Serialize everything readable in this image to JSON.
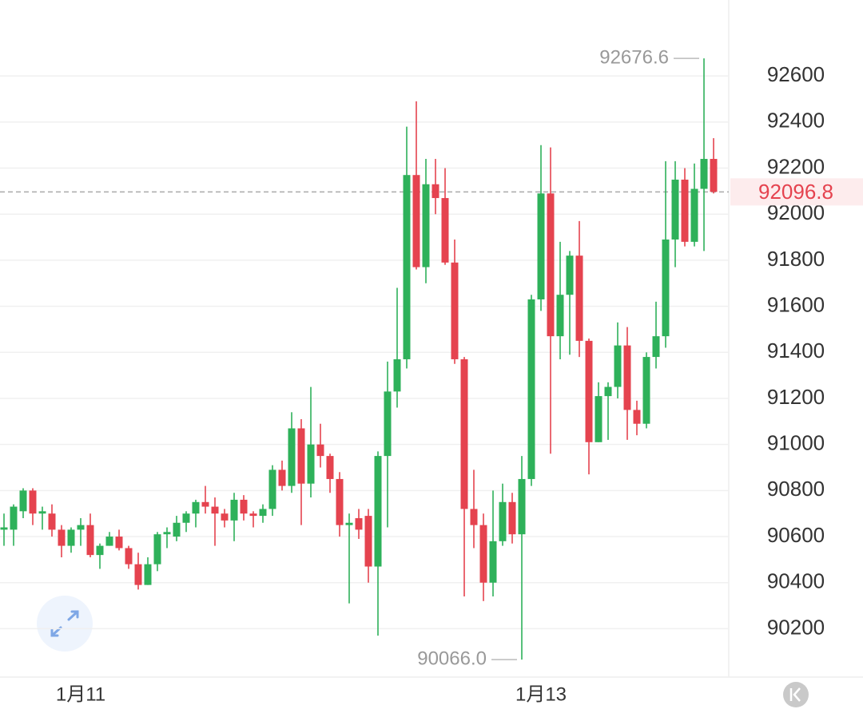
{
  "chart_data": {
    "type": "candlestick",
    "categories": [
      null,
      null,
      null,
      null,
      null,
      null,
      null,
      null,
      "1月11",
      null,
      null,
      null,
      null,
      null,
      null,
      null,
      null,
      null,
      null,
      null,
      null,
      null,
      null,
      null,
      null,
      null,
      null,
      null,
      null,
      null,
      null,
      null,
      null,
      null,
      null,
      null,
      null,
      null,
      null,
      null,
      null,
      null,
      null,
      null,
      null,
      null,
      null,
      null,
      null,
      null,
      null,
      null,
      null,
      null,
      null,
      null,
      "1月13",
      null,
      null,
      null,
      null,
      null,
      null,
      null,
      null,
      null,
      null,
      null,
      null,
      null,
      null,
      null,
      null,
      null,
      null
    ],
    "open": [
      90630,
      90630,
      90710,
      90800,
      90700,
      90700,
      90630,
      90560,
      90630,
      90650,
      90520,
      90560,
      90600,
      90550,
      90480,
      90390,
      90480,
      90610,
      90600,
      90660,
      90700,
      90750,
      90730,
      90700,
      90670,
      90760,
      90700,
      90690,
      90720,
      90890,
      90820,
      91070,
      90830,
      91000,
      90950,
      90850,
      90650,
      90680,
      90690,
      90470,
      90950,
      91230,
      91370,
      92170,
      91770,
      92130,
      92070,
      91790,
      91370,
      90720,
      90650,
      90400,
      90580,
      90750,
      90610,
      90850,
      91630,
      92090,
      91470,
      91650,
      91820,
      91450,
      91010,
      91210,
      91250,
      91430,
      91150,
      91090,
      91380,
      91470,
      91890,
      92150,
      91880,
      92110,
      92240
    ],
    "high": [
      90700,
      90740,
      90810,
      90810,
      90730,
      90740,
      90650,
      90640,
      90680,
      90700,
      90570,
      90620,
      90630,
      90560,
      90530,
      90510,
      90620,
      90640,
      90690,
      90710,
      90760,
      90820,
      90770,
      90720,
      90790,
      90780,
      90710,
      90740,
      90910,
      90930,
      91140,
      91110,
      91250,
      91090,
      90960,
      90880,
      90700,
      90720,
      90720,
      90970,
      91360,
      91680,
      92380,
      92490,
      92240,
      92240,
      92200,
      91890,
      91380,
      90890,
      90700,
      90800,
      90830,
      90790,
      90950,
      91650,
      92300,
      92290,
      91880,
      91840,
      91970,
      91460,
      91270,
      91270,
      91530,
      91510,
      91190,
      91400,
      91620,
      92230,
      92230,
      92200,
      92220,
      92676.6,
      92330
    ],
    "low": [
      90560,
      90560,
      90680,
      90650,
      90630,
      90600,
      90510,
      90530,
      90560,
      90510,
      90460,
      90560,
      90540,
      90460,
      90370,
      90390,
      90450,
      90550,
      90580,
      90620,
      90640,
      90700,
      90560,
      90640,
      90580,
      90670,
      90640,
      90660,
      90690,
      90800,
      90790,
      90650,
      90770,
      90900,
      90790,
      90600,
      90310,
      90590,
      90400,
      90170,
      90640,
      91160,
      91330,
      91760,
      91700,
      92000,
      91780,
      91350,
      90340,
      90550,
      90320,
      90340,
      90560,
      90570,
      90066.0,
      90820,
      91580,
      90960,
      91370,
      91390,
      91380,
      90870,
      91010,
      91020,
      91200,
      91020,
      91040,
      91070,
      91330,
      91420,
      91770,
      91860,
      91860,
      91840,
      92090
    ],
    "close": [
      90640,
      90730,
      90800,
      90700,
      90710,
      90630,
      90560,
      90630,
      90650,
      90520,
      90560,
      90600,
      90550,
      90480,
      90390,
      90480,
      90610,
      90620,
      90660,
      90700,
      90750,
      90730,
      90700,
      90670,
      90760,
      90700,
      90690,
      90720,
      90890,
      90820,
      91070,
      90830,
      91000,
      90950,
      90850,
      90650,
      90660,
      90630,
      90470,
      90950,
      91230,
      91370,
      92170,
      91770,
      92130,
      92070,
      91790,
      91370,
      90720,
      90650,
      90400,
      90580,
      90750,
      90610,
      90850,
      91630,
      92090,
      91470,
      91650,
      91820,
      91450,
      91010,
      91210,
      91250,
      91430,
      91150,
      91090,
      91380,
      91470,
      91890,
      92150,
      91880,
      92110,
      92240,
      92096.8
    ],
    "up_color": "#2eb15a",
    "down_color": "#e5434f",
    "ylim": [
      89990,
      92930
    ],
    "yticks": [
      90200,
      90400,
      90600,
      90800,
      91000,
      91200,
      91400,
      91600,
      91800,
      92000,
      92200,
      92400,
      92600
    ],
    "grid": true,
    "annotations": [
      {
        "label": "92676.6",
        "value": 92676.6
      },
      {
        "label": "90066.0",
        "value": 90066.0
      }
    ],
    "last_price": {
      "label": "92096.8",
      "value": 92096.8
    }
  }
}
